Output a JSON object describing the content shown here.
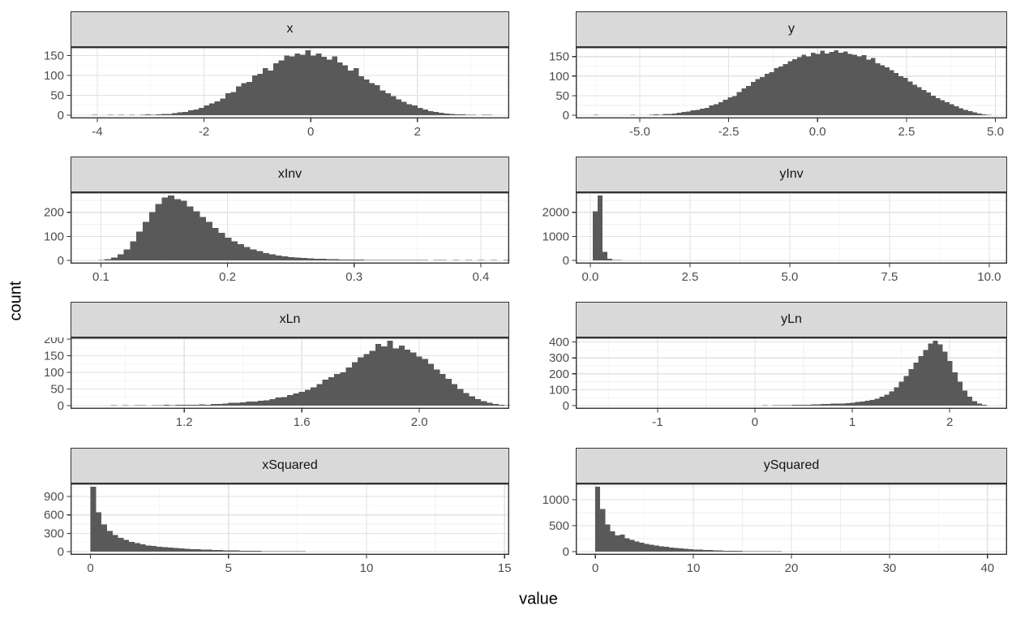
{
  "figure": {
    "ylabel": "count",
    "xlabel": "value",
    "background": "#FFFFFF",
    "colors": {
      "bar_fill": "#595959",
      "strip_background": "#D9D9D9",
      "panel_border": "#333333",
      "grid_major": "#E2E2E2",
      "grid_minor": "#EFEFEF",
      "tick_mark": "#333333",
      "axis_text": "#4D4D4D",
      "title_text": "#000000"
    }
  },
  "chart_data": [
    {
      "type": "histogram",
      "title": "x",
      "row": 0,
      "col": 0,
      "x_ticks": [
        -4,
        -2,
        0,
        2
      ],
      "x_tick_labels": [
        "-4",
        "-2",
        "0",
        "2"
      ],
      "y_ticks": [
        0,
        50,
        100,
        150
      ],
      "y_tick_labels": [
        "0",
        "50",
        "100",
        "150"
      ],
      "xlim": [
        -4.5,
        3.72
      ],
      "ylim": [
        -8.15,
        171.15
      ],
      "bin_start": -4.1,
      "bin_width": 0.1,
      "counts": [
        1,
        0,
        0,
        1,
        0,
        1,
        0,
        1,
        0,
        1,
        2,
        1,
        2,
        3,
        3,
        5,
        7,
        8,
        12,
        14,
        18,
        24,
        30,
        35,
        42,
        55,
        58,
        72,
        80,
        84,
        100,
        104,
        118,
        112,
        130,
        138,
        150,
        148,
        155,
        152,
        163,
        150,
        155,
        147,
        140,
        148,
        132,
        125,
        112,
        118,
        98,
        90,
        80,
        75,
        62,
        55,
        48,
        40,
        34,
        28,
        24,
        18,
        14,
        10,
        8,
        6,
        4,
        3,
        2,
        2,
        1,
        1,
        0,
        1,
        1
      ]
    },
    {
      "type": "histogram",
      "title": "y",
      "row": 0,
      "col": 1,
      "x_ticks": [
        -5.0,
        -2.5,
        0.0,
        2.5,
        5.0
      ],
      "x_tick_labels": [
        "-5.0",
        "-2.5",
        "0.0",
        "2.5",
        "5.0"
      ],
      "y_ticks": [
        0,
        50,
        100,
        150
      ],
      "y_tick_labels": [
        "0",
        "50",
        "100",
        "150"
      ],
      "xlim": [
        -6.8,
        5.33
      ],
      "ylim": [
        -8.3,
        174.3
      ],
      "bin_start": -6.3,
      "bin_width": 0.13,
      "counts": [
        1,
        0,
        0,
        0,
        0,
        0,
        0,
        0,
        1,
        0,
        0,
        0,
        1,
        2,
        1,
        3,
        3,
        4,
        6,
        8,
        9,
        12,
        14,
        17,
        19,
        25,
        28,
        33,
        39,
        46,
        49,
        59,
        68,
        75,
        85,
        92,
        98,
        106,
        110,
        120,
        125,
        131,
        138,
        143,
        148,
        155,
        150,
        160,
        157,
        165,
        158,
        162,
        166,
        160,
        163,
        157,
        155,
        150,
        154,
        142,
        146,
        133,
        128,
        122,
        115,
        108,
        100,
        95,
        86,
        78,
        72,
        64,
        58,
        50,
        44,
        38,
        33,
        28,
        23,
        18,
        14,
        10,
        7,
        4,
        2,
        1
      ]
    },
    {
      "type": "histogram",
      "title": "xInv",
      "row": 1,
      "col": 0,
      "x_ticks": [
        0.1,
        0.2,
        0.3,
        0.4
      ],
      "x_tick_labels": [
        "0.1",
        "0.2",
        "0.3",
        "0.4"
      ],
      "y_ticks": [
        0,
        100,
        200
      ],
      "y_tick_labels": [
        "0",
        "100",
        "200"
      ],
      "xlim": [
        0.076,
        0.4225
      ],
      "ylim": [
        -13.5,
        283.5
      ],
      "bin_start": 0.098,
      "bin_width": 0.005,
      "counts": [
        2,
        5,
        12,
        25,
        45,
        80,
        120,
        160,
        200,
        235,
        262,
        270,
        255,
        248,
        225,
        205,
        180,
        160,
        135,
        115,
        95,
        80,
        68,
        55,
        45,
        38,
        30,
        25,
        20,
        17,
        14,
        12,
        10,
        8,
        7,
        6,
        5,
        5,
        4,
        3,
        3,
        3,
        2,
        2,
        2,
        2,
        1,
        2,
        1,
        1,
        1,
        1,
        0,
        1,
        1,
        0,
        1,
        0,
        1,
        0,
        1,
        0,
        1,
        0,
        1
      ]
    },
    {
      "type": "histogram",
      "title": "yInv",
      "row": 1,
      "col": 1,
      "x_ticks": [
        0.0,
        2.5,
        5.0,
        7.5,
        10.0
      ],
      "x_tick_labels": [
        "0.0",
        "2.5",
        "5.0",
        "7.5",
        "10.0"
      ],
      "y_ticks": [
        0,
        1000,
        2000
      ],
      "y_tick_labels": [
        "0",
        "1000",
        "2000"
      ],
      "xlim": [
        -0.365,
        10.45
      ],
      "ylim": [
        -135,
        2835
      ],
      "bin_start": 0.06,
      "bin_width": 0.122,
      "counts": [
        2050,
        2700,
        350,
        60,
        25,
        12,
        6,
        3,
        2,
        1,
        1,
        0,
        1,
        0,
        0,
        1,
        0,
        0,
        0,
        1,
        0,
        0,
        0,
        0,
        1,
        0,
        0,
        0,
        0,
        0,
        1,
        0,
        0,
        0,
        0,
        0,
        0,
        1,
        0,
        0,
        0,
        0,
        0,
        0,
        0,
        1,
        0,
        0,
        0,
        0,
        0,
        0,
        0,
        0,
        1,
        0,
        0,
        0,
        0,
        0,
        0,
        0,
        0,
        0,
        1,
        0,
        0,
        0,
        0,
        0,
        0,
        0,
        0,
        0,
        0,
        1,
        0,
        0,
        0,
        0,
        0,
        0,
        0,
        1,
        1
      ]
    },
    {
      "type": "histogram",
      "title": "xLn",
      "row": 2,
      "col": 0,
      "x_ticks": [
        1.2,
        1.6,
        2.0
      ],
      "x_tick_labels": [
        "1.2",
        "1.6",
        "2.0"
      ],
      "y_ticks": [
        0,
        50,
        100,
        150,
        200
      ],
      "y_tick_labels": [
        "0",
        "50",
        "100",
        "150",
        "200"
      ],
      "xlim": [
        0.813,
        2.306
      ],
      "ylim": [
        -9.75,
        204.75
      ],
      "bin_start": 0.95,
      "bin_width": 0.02,
      "counts": [
        1,
        0,
        1,
        0,
        1,
        1,
        0,
        1,
        1,
        2,
        1,
        2,
        2,
        3,
        2,
        4,
        3,
        5,
        5,
        6,
        8,
        8,
        10,
        12,
        12,
        15,
        16,
        20,
        24,
        26,
        32,
        36,
        42,
        48,
        55,
        65,
        78,
        85,
        95,
        100,
        115,
        130,
        145,
        155,
        165,
        185,
        178,
        195,
        172,
        180,
        168,
        160,
        148,
        140,
        125,
        108,
        95,
        80,
        65,
        50,
        38,
        28,
        20,
        14,
        8,
        5,
        3,
        1
      ]
    },
    {
      "type": "histogram",
      "title": "yLn",
      "row": 2,
      "col": 1,
      "x_ticks": [
        -1,
        0,
        1,
        2
      ],
      "x_tick_labels": [
        "-1",
        "0",
        "1",
        "2"
      ],
      "y_ticks": [
        0,
        100,
        200,
        300,
        400
      ],
      "y_tick_labels": [
        "0",
        "100",
        "200",
        "300",
        "400"
      ],
      "xlim": [
        -1.84,
        2.59
      ],
      "ylim": [
        -20.4,
        428.4
      ],
      "bin_start": -1.62,
      "bin_width": 0.05,
      "counts": [
        1,
        0,
        0,
        0,
        0,
        0,
        1,
        0,
        0,
        0,
        0,
        1,
        0,
        0,
        0,
        0,
        0,
        1,
        0,
        0,
        1,
        0,
        0,
        1,
        0,
        1,
        0,
        1,
        1,
        0,
        1,
        1,
        1,
        1,
        2,
        1,
        2,
        2,
        3,
        3,
        4,
        4,
        5,
        6,
        7,
        8,
        9,
        10,
        12,
        13,
        14,
        16,
        18,
        22,
        26,
        30,
        36,
        44,
        55,
        70,
        90,
        115,
        150,
        185,
        230,
        270,
        310,
        350,
        390,
        408,
        385,
        340,
        280,
        210,
        150,
        95,
        55,
        28,
        12,
        4,
        1
      ]
    },
    {
      "type": "histogram",
      "title": "xSquared",
      "row": 3,
      "col": 0,
      "x_ticks": [
        0,
        5,
        10,
        15
      ],
      "x_tick_labels": [
        "0",
        "5",
        "10",
        "15"
      ],
      "y_ticks": [
        0,
        300,
        600,
        900
      ],
      "y_tick_labels": [
        "0",
        "300",
        "600",
        "900"
      ],
      "xlim": [
        -0.72,
        15.17
      ],
      "ylim": [
        -53,
        1113
      ],
      "bin_start": 0,
      "bin_width": 0.2,
      "counts": [
        1060,
        640,
        445,
        340,
        270,
        225,
        190,
        160,
        140,
        118,
        100,
        90,
        82,
        74,
        66,
        58,
        52,
        47,
        42,
        38,
        34,
        30,
        27,
        24,
        21,
        19,
        17,
        15,
        13,
        12,
        10,
        9,
        8,
        7,
        6,
        6,
        5,
        4,
        4,
        3,
        3,
        2,
        2,
        2,
        1,
        1,
        1,
        1,
        0,
        1,
        0,
        1,
        0,
        0,
        1,
        0,
        0,
        1,
        0,
        0,
        0,
        1,
        0,
        0,
        0,
        0,
        0,
        1,
        0,
        0,
        0,
        0,
        1,
        0,
        0,
        1
      ]
    },
    {
      "type": "histogram",
      "title": "ySquared",
      "row": 3,
      "col": 1,
      "x_ticks": [
        0,
        10,
        20,
        30,
        40
      ],
      "x_tick_labels": [
        "0",
        "10",
        "20",
        "30",
        "40"
      ],
      "y_ticks": [
        0,
        500,
        1000
      ],
      "y_tick_labels": [
        "0",
        "500",
        "1000"
      ],
      "xlim": [
        -2,
        42
      ],
      "ylim": [
        -62.5,
        1312.5
      ],
      "bin_start": 0,
      "bin_width": 0.5,
      "counts": [
        1250,
        820,
        520,
        390,
        310,
        330,
        255,
        225,
        195,
        170,
        150,
        135,
        120,
        105,
        92,
        80,
        70,
        62,
        55,
        48,
        42,
        36,
        32,
        28,
        24,
        21,
        18,
        16,
        14,
        12,
        10,
        9,
        8,
        7,
        6,
        5,
        4,
        4,
        3,
        3,
        2,
        2,
        2,
        1,
        1,
        1,
        1,
        0,
        1,
        0,
        1,
        0,
        0,
        1,
        0,
        0,
        1,
        0,
        0,
        0,
        1,
        0,
        0,
        0,
        1,
        0,
        0,
        0,
        0,
        1,
        0,
        0,
        0,
        0,
        0,
        0,
        1,
        0,
        0,
        1
      ]
    }
  ]
}
